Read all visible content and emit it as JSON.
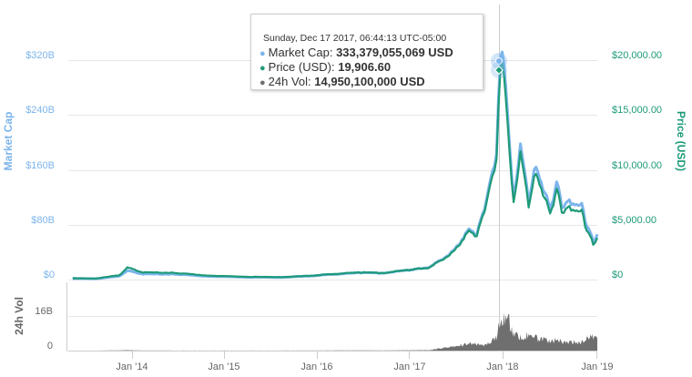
{
  "chart_data": {
    "type": "line",
    "title": "",
    "panels": [
      {
        "name": "price_panel",
        "series": [
          {
            "name": "Market Cap",
            "axis": "left",
            "color": "#7cb5ec",
            "unit": "USD (billions)"
          },
          {
            "name": "Price (USD)",
            "axis": "right",
            "color": "#1d9a78",
            "unit": "USD"
          }
        ],
        "left_axis": {
          "title": "Market Cap",
          "ticks": [
            "$0",
            "$80B",
            "$160B",
            "$240B",
            "$320B"
          ],
          "range": [
            0,
            320
          ]
        },
        "right_axis": {
          "title": "Price (USD)",
          "ticks": [
            "$0",
            "$5,000.00",
            "$10,000.00",
            "$15,000.00",
            "$20,000.00"
          ],
          "range": [
            0,
            20000
          ]
        }
      },
      {
        "name": "volume_panel",
        "series": [
          {
            "name": "24h Vol",
            "color": "#6f6f6f",
            "type": "area"
          }
        ],
        "axis": {
          "title": "24h Vol",
          "ticks": [
            "0",
            "16B"
          ],
          "range": [
            0,
            16
          ]
        }
      }
    ],
    "x_ticks": [
      "Jan '14",
      "Jan '15",
      "Jan '16",
      "Jan '17",
      "Jan '18",
      "Jan '19"
    ],
    "xlabel": "",
    "grid": true,
    "x": [
      "2013-05",
      "2013-08",
      "2013-11",
      "2013-12",
      "2014-02",
      "2014-06",
      "2014-10",
      "2015-01",
      "2015-04",
      "2015-08",
      "2015-11",
      "2016-01",
      "2016-06",
      "2016-09",
      "2017-01",
      "2017-03",
      "2017-05",
      "2017-06",
      "2017-08",
      "2017-09",
      "2017-10",
      "2017-11",
      "2017-12-01",
      "2017-12-17",
      "2018-01-06",
      "2018-02-06",
      "2018-03-05",
      "2018-04-06",
      "2018-05-05",
      "2018-06-29",
      "2018-07-25",
      "2018-08-14",
      "2018-09-20",
      "2018-10-31",
      "2018-11-20",
      "2018-12-15",
      "2018-12-31"
    ],
    "price_usd": [
      120,
      100,
      400,
      1100,
      650,
      620,
      380,
      300,
      240,
      230,
      320,
      430,
      650,
      610,
      950,
      1100,
      2000,
      2600,
      4300,
      3900,
      6200,
      9700,
      10800,
      19906.6,
      17100,
      6900,
      11400,
      6600,
      9800,
      5900,
      8200,
      6300,
      6500,
      6300,
      4400,
      3300,
      3800
    ],
    "market_cap_b": [
      1.5,
      1.2,
      5,
      13,
      8,
      8,
      5,
      4,
      3.4,
      3.3,
      4.8,
      6.5,
      10,
      9.5,
      15,
      18,
      33,
      43,
      71,
      65,
      103,
      162,
      180,
      333.38,
      290,
      117,
      193,
      112,
      167,
      101,
      141,
      109,
      113,
      110,
      77,
      57,
      66
    ],
    "volume_b": [
      0,
      0,
      0.1,
      0.2,
      0.05,
      0.02,
      0.02,
      0.02,
      0.02,
      0.02,
      0.03,
      0.05,
      0.1,
      0.05,
      0.2,
      0.2,
      1.5,
      1.8,
      3,
      2.8,
      2.5,
      4.5,
      6,
      14.95,
      17,
      8,
      6,
      7,
      6,
      4,
      5,
      4,
      3.9,
      3.8,
      5.5,
      6,
      5.5
    ],
    "highlight": {
      "date": "Sunday, Dec 17 2017, 06:44:13 UTC-05:00",
      "market_cap": "333,379,055,069 USD",
      "price": "19,906.60",
      "volume": "14,950,100,000 USD"
    }
  },
  "axes": {
    "left_title": "Market Cap",
    "right_title": "Price (USD)",
    "vol_title": "24h Vol",
    "left_ticks": [
      "$320B",
      "$240B",
      "$160B",
      "$80B",
      "$0"
    ],
    "right_ticks": [
      "$20,000.00",
      "$15,000.00",
      "$10,000.00",
      "$5,000.00",
      "$0"
    ],
    "vol_ticks": [
      "16B",
      "0"
    ],
    "x_ticks": [
      "Jan '14",
      "Jan '15",
      "Jan '16",
      "Jan '17",
      "Jan '18",
      "Jan '19"
    ]
  },
  "tooltip": {
    "header": "Sunday, Dec 17 2017, 06:44:13 UTC-05:00",
    "rows": [
      {
        "label": "Market Cap: ",
        "value": "333,379,055,069 USD",
        "color": "#7cb5ec"
      },
      {
        "label": "Price (USD): ",
        "value": "19,906.60",
        "color": "#1d9a78"
      },
      {
        "label": "24h Vol: ",
        "value": "14,950,100,000 USD",
        "color": "#6f6f6f"
      }
    ]
  },
  "colors": {
    "market_cap": "#7cb5ec",
    "price": "#1d9a78",
    "volume": "#6f6f6f",
    "grid": "#e6e6e6"
  }
}
